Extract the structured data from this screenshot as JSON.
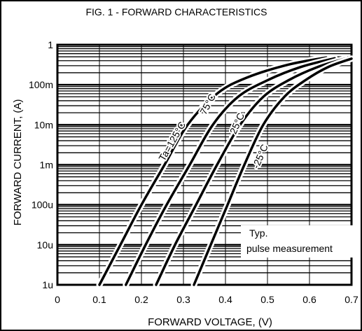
{
  "chart_data": {
    "type": "line",
    "title": "FIG. 1 - FORWARD CHARACTERISTICS",
    "xlabel": "FORWARD  VOLTAGE, (V)",
    "ylabel": "FORWARD  CURRENT, (A)",
    "x_scale": "linear",
    "y_scale": "log",
    "xlim": [
      0,
      0.7
    ],
    "ylim": [
      1e-06,
      1
    ],
    "grid": true,
    "x_ticks": [
      {
        "v": 0,
        "label": "0"
      },
      {
        "v": 0.1,
        "label": "0.1"
      },
      {
        "v": 0.2,
        "label": "0.2"
      },
      {
        "v": 0.3,
        "label": "0.3"
      },
      {
        "v": 0.4,
        "label": "0.4"
      },
      {
        "v": 0.5,
        "label": "0.5"
      },
      {
        "v": 0.6,
        "label": "0.6"
      },
      {
        "v": 0.7,
        "label": "0.7"
      }
    ],
    "y_ticks": [
      {
        "v": 1,
        "label": "1"
      },
      {
        "v": 0.1,
        "label": "100m"
      },
      {
        "v": 0.01,
        "label": "10m"
      },
      {
        "v": 0.001,
        "label": "1m"
      },
      {
        "v": 0.0001,
        "label": "100u"
      },
      {
        "v": 1e-05,
        "label": "10u"
      },
      {
        "v": 1e-06,
        "label": "1u"
      }
    ],
    "series": [
      {
        "name": "Ta=125°C",
        "color": "#000000",
        "points": [
          [
            0.1,
            1e-06
          ],
          [
            0.15,
            1e-05
          ],
          [
            0.2,
            0.0001
          ],
          [
            0.255,
            0.001
          ],
          [
            0.31,
            0.01
          ],
          [
            0.38,
            0.06
          ],
          [
            0.45,
            0.15
          ],
          [
            0.55,
            0.32
          ],
          [
            0.64,
            0.48
          ]
        ]
      },
      {
        "name": "75°C",
        "color": "#000000",
        "points": [
          [
            0.163,
            1e-06
          ],
          [
            0.21,
            1e-05
          ],
          [
            0.26,
            0.0001
          ],
          [
            0.315,
            0.001
          ],
          [
            0.37,
            0.01
          ],
          [
            0.43,
            0.05
          ],
          [
            0.5,
            0.13
          ],
          [
            0.58,
            0.28
          ],
          [
            0.66,
            0.46
          ]
        ]
      },
      {
        "name": "25°C",
        "color": "#000000",
        "points": [
          [
            0.235,
            1e-06
          ],
          [
            0.28,
            1e-05
          ],
          [
            0.33,
            0.0001
          ],
          [
            0.38,
            0.001
          ],
          [
            0.435,
            0.01
          ],
          [
            0.49,
            0.05
          ],
          [
            0.55,
            0.13
          ],
          [
            0.62,
            0.28
          ],
          [
            0.685,
            0.45
          ]
        ]
      },
      {
        "name": "-25°C",
        "color": "#000000",
        "points": [
          [
            0.325,
            1e-06
          ],
          [
            0.365,
            1e-05
          ],
          [
            0.405,
            0.0001
          ],
          [
            0.445,
            0.001
          ],
          [
            0.49,
            0.01
          ],
          [
            0.54,
            0.05
          ],
          [
            0.59,
            0.13
          ],
          [
            0.645,
            0.28
          ],
          [
            0.7,
            0.45
          ]
        ]
      }
    ],
    "annotations": [
      "Typ.",
      "pulse measurement"
    ]
  }
}
